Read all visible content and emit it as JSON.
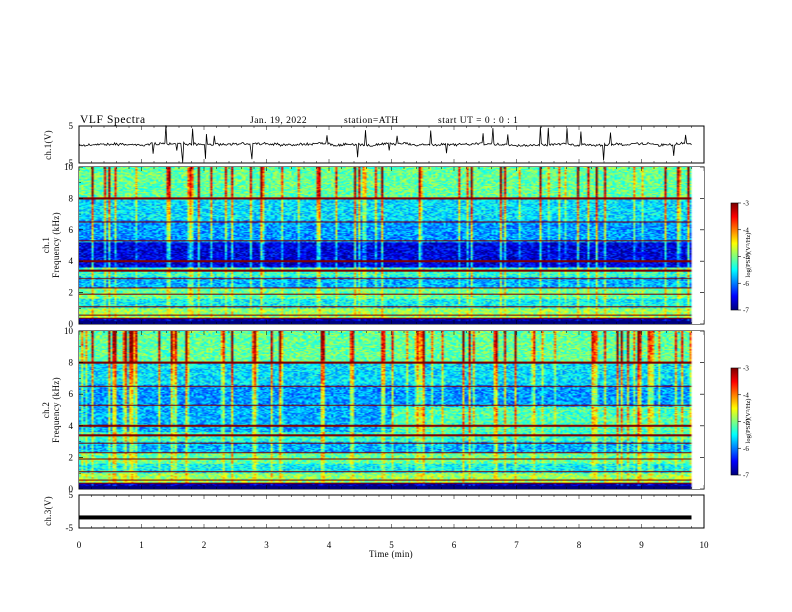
{
  "header": {
    "title": "VLF  Spectra",
    "date": "Jan. 19, 2022",
    "station": "station=ATH",
    "start": "start  UT  =    0 : 0  : 1"
  },
  "chart_data": [
    {
      "type": "line",
      "panel": "ch1-waveform",
      "ylabel": "ch.1(V)",
      "ylim": [
        -5,
        5
      ],
      "yticks": [
        "5",
        "-5"
      ],
      "xlim": [
        0,
        10
      ],
      "color": "#000000"
    },
    {
      "type": "heatmap",
      "panel": "ch1-spectrogram",
      "ylabel_line1": "ch.1",
      "ylabel_line2": "Frequency  (kHz)",
      "ylim": [
        0,
        10
      ],
      "yticks": [
        "0",
        "2",
        "4",
        "6",
        "8",
        "10"
      ],
      "xlim": [
        0,
        10
      ],
      "data_end_min": 9.8,
      "colorbar": {
        "label": "log(PSD)(V²/Hz)",
        "range": [
          -7,
          -3
        ],
        "ticks": [
          "-3",
          "-4",
          "-5",
          "-6",
          "-7"
        ]
      }
    },
    {
      "type": "heatmap",
      "panel": "ch2-spectrogram",
      "ylabel_line1": "ch.2",
      "ylabel_line2": "Frequency  (kHz)",
      "ylim": [
        0,
        10
      ],
      "yticks": [
        "0",
        "2",
        "4",
        "6",
        "8",
        "10"
      ],
      "xlim": [
        0,
        10
      ],
      "data_end_min": 9.8,
      "colorbar": {
        "label": "log(PSD)(V²/Hz)",
        "range": [
          -7,
          -3
        ],
        "ticks": [
          "-3",
          "-4",
          "-5",
          "-6",
          "-7"
        ]
      }
    },
    {
      "type": "line",
      "panel": "ch3-waveform",
      "ylabel": "ch.3(V)",
      "ylim": [
        -5,
        5
      ],
      "yticks": [
        "5",
        "-5"
      ],
      "xlim": [
        0,
        10
      ],
      "level_volts": -1.8,
      "color": "#000000"
    }
  ],
  "xaxis": {
    "label": "Time  (min)",
    "ticks": [
      "0",
      "1",
      "2",
      "3",
      "4",
      "5",
      "6",
      "7",
      "8",
      "9",
      "10"
    ]
  }
}
